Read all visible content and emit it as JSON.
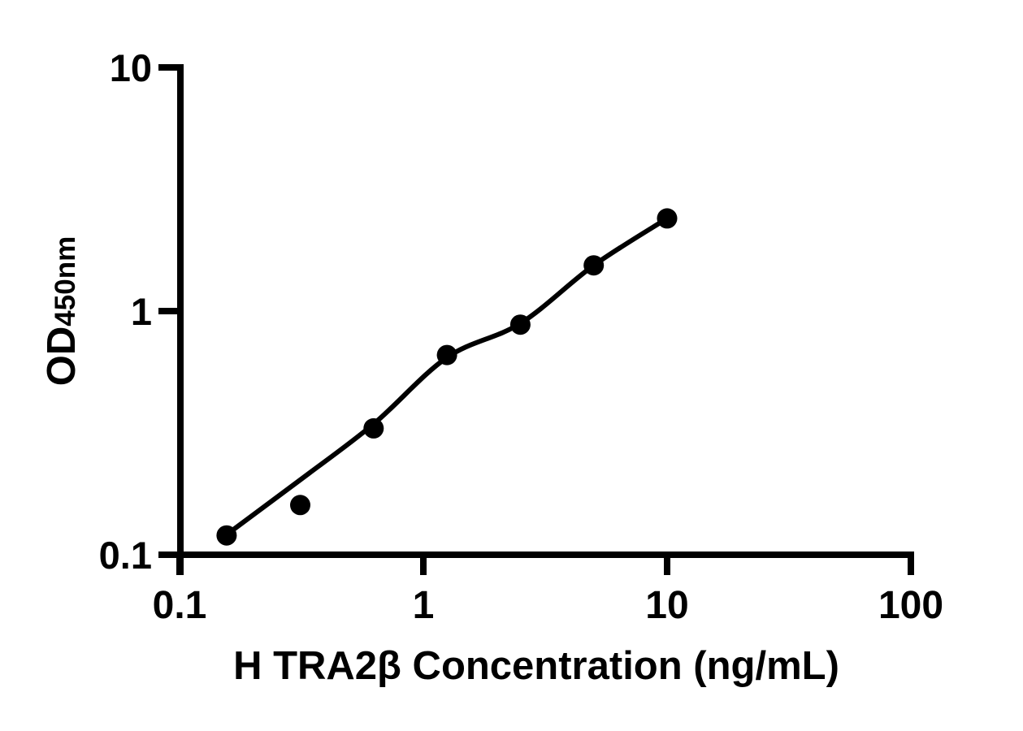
{
  "figure": {
    "background": "#ffffff",
    "ink": "#000000"
  },
  "chart_data": {
    "type": "scatter",
    "title": "",
    "xlabel": "H TRA2β Concentration (ng/mL)",
    "ylabel": "OD450nm",
    "ylabel_main": "OD",
    "ylabel_sub": "450nm",
    "x_scale": "log10",
    "y_scale": "log10",
    "xlim": [
      0.1,
      100
    ],
    "ylim": [
      0.1,
      10
    ],
    "x_tick_values": [
      0.1,
      1,
      10,
      100
    ],
    "x_tick_labels": [
      "0.1",
      "1",
      "10",
      "100"
    ],
    "y_tick_values": [
      10,
      1,
      0.1
    ],
    "y_tick_labels": [
      "10",
      "1",
      "0.1"
    ],
    "grid": false,
    "legend": "none",
    "series": [
      {
        "name": "standard-points",
        "type": "scatter",
        "marker": "filled-circle",
        "color": "#000000",
        "x": [
          0.156,
          0.3125,
          0.625,
          1.25,
          2.5,
          5,
          10
        ],
        "y": [
          0.12,
          0.16,
          0.33,
          0.66,
          0.88,
          1.54,
          2.4
        ]
      },
      {
        "name": "fit-curve",
        "type": "line",
        "color": "#000000",
        "x": [
          0.156,
          0.3125,
          0.625,
          1.25,
          2.5,
          5,
          10
        ],
        "y": [
          0.121,
          0.203,
          0.344,
          0.645,
          0.89,
          1.54,
          2.4
        ]
      }
    ]
  }
}
